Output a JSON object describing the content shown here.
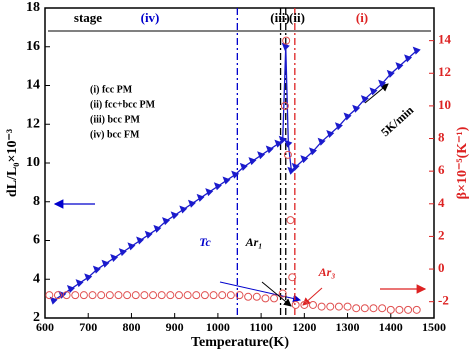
{
  "chart_data": {
    "type": "line",
    "x_label": "Temperature(K)",
    "y_label": "dL/L₀×10⁻³",
    "y2_label": "β×10⁻⁵(K⁻¹)",
    "xlim": [
      600,
      1500
    ],
    "xticks": [
      600,
      700,
      800,
      900,
      1000,
      1100,
      1200,
      1300,
      1400,
      1500
    ],
    "ylim": [
      2,
      18
    ],
    "yticks": [
      2,
      4,
      6,
      8,
      10,
      12,
      14,
      16,
      18
    ],
    "y2lim": [
      -3,
      16
    ],
    "y2ticks": [
      -2,
      0,
      2,
      4,
      6,
      8,
      10,
      12,
      14
    ],
    "series": [
      {
        "name": "dL/L₀",
        "color": "#1a1acc",
        "marker": "triangle",
        "line": true,
        "x": [
          620,
          640,
          660,
          680,
          700,
          720,
          740,
          760,
          780,
          800,
          820,
          840,
          860,
          880,
          900,
          920,
          940,
          960,
          980,
          1000,
          1020,
          1040,
          1060,
          1080,
          1100,
          1120,
          1140,
          1150,
          1157,
          1163,
          1170,
          1180,
          1200,
          1220,
          1240,
          1260,
          1280,
          1300,
          1320,
          1340,
          1360,
          1380,
          1400,
          1420,
          1440,
          1460
        ],
        "values": [
          2.9,
          3.2,
          3.5,
          3.8,
          4.1,
          4.5,
          4.8,
          5.1,
          5.4,
          5.7,
          6.0,
          6.3,
          6.6,
          7.0,
          7.3,
          7.6,
          7.9,
          8.2,
          8.5,
          8.8,
          9.1,
          9.4,
          9.8,
          10.1,
          10.4,
          10.7,
          11.0,
          11.2,
          16.0,
          11.0,
          9.6,
          9.8,
          10.2,
          10.6,
          11.1,
          11.5,
          11.9,
          12.4,
          12.8,
          13.3,
          13.7,
          14.1,
          14.6,
          15.0,
          15.4,
          15.8
        ]
      },
      {
        "name": "β",
        "color": "#e05050",
        "marker": "circle",
        "line": false,
        "axis": "y2",
        "x": [
          610,
          630,
          650,
          670,
          690,
          710,
          730,
          750,
          770,
          790,
          810,
          830,
          850,
          870,
          890,
          910,
          930,
          950,
          970,
          990,
          1010,
          1030,
          1050,
          1070,
          1090,
          1110,
          1130,
          1150,
          1155,
          1158,
          1162,
          1168,
          1172,
          1180,
          1200,
          1220,
          1240,
          1260,
          1280,
          1300,
          1320,
          1340,
          1360,
          1380,
          1400,
          1420,
          1440,
          1460
        ],
        "values": [
          -1.6,
          -1.6,
          -1.6,
          -1.6,
          -1.6,
          -1.6,
          -1.6,
          -1.6,
          -1.6,
          -1.6,
          -1.6,
          -1.6,
          -1.6,
          -1.6,
          -1.6,
          -1.6,
          -1.6,
          -1.6,
          -1.6,
          -1.6,
          -1.6,
          -1.6,
          -1.6,
          -1.7,
          -1.7,
          -1.8,
          -1.8,
          -1.5,
          10,
          14,
          7,
          3,
          -0.5,
          -2.2,
          -2.2,
          -2.2,
          -2.3,
          -2.3,
          -2.3,
          -2.3,
          -2.4,
          -2.4,
          -2.4,
          -2.4,
          -2.5,
          -2.5,
          -2.5,
          -2.5
        ]
      }
    ],
    "vlines": [
      {
        "x": 1045,
        "color": "#0000cc"
      },
      {
        "x": 1145,
        "color": "#000000"
      },
      {
        "x": 1157,
        "color": "#000000"
      },
      {
        "x": 1178,
        "color": "#dd2222"
      }
    ],
    "stages": [
      {
        "text": "stage",
        "color": "#000000"
      },
      {
        "text": "(iv)",
        "color": "#0000cc"
      },
      {
        "text": "(iii)",
        "color": "#000000"
      },
      {
        "text": "(ii)",
        "color": "#000000"
      },
      {
        "text": "(i)",
        "color": "#dd2222"
      }
    ],
    "legend_notes": [
      "(i)  fcc PM",
      "(ii)  fcc+bcc PM",
      "(iii)  bcc PM",
      "(iv)  bcc FM"
    ],
    "annotations": [
      {
        "text": "5K/min",
        "color": "#000000"
      },
      {
        "text": "Tc",
        "color": "#0000cc"
      },
      {
        "text": "Ar₁",
        "color": "#000000"
      },
      {
        "text": "Ar₃",
        "color": "#dd2222"
      }
    ]
  }
}
